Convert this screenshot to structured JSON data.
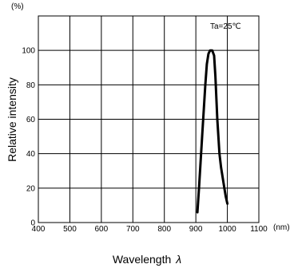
{
  "chart_data": {
    "type": "line",
    "title": "",
    "xlabel": "Wavelength",
    "xlabel_symbol": "λ",
    "ylabel": "Relative intensity",
    "y_unit": "(%)",
    "x_unit": "(nm)",
    "annotation": "Ta=25℃",
    "legend": "none",
    "grid": true,
    "xlim": [
      400,
      1100
    ],
    "ylim": [
      0,
      120
    ],
    "x_ticks": [
      400,
      500,
      600,
      700,
      800,
      900,
      1000,
      1100
    ],
    "y_ticks": [
      0,
      20,
      40,
      60,
      80,
      100
    ],
    "x_tick_labels": [
      "400",
      "500",
      "600",
      "700",
      "800",
      "900",
      "1000",
      "1100"
    ],
    "y_tick_labels": [
      "0",
      "20",
      "40",
      "60",
      "80",
      "100"
    ],
    "series": [
      {
        "color": "#000000",
        "points": [
          [
            905,
            6
          ],
          [
            910,
            20
          ],
          [
            920,
            50
          ],
          [
            930,
            80
          ],
          [
            935,
            92
          ],
          [
            940,
            98
          ],
          [
            945,
            100
          ],
          [
            952,
            100
          ],
          [
            958,
            97
          ],
          [
            962,
            85
          ],
          [
            968,
            60
          ],
          [
            975,
            40
          ],
          [
            980,
            32
          ],
          [
            988,
            23
          ],
          [
            995,
            15
          ],
          [
            1000,
            11
          ]
        ]
      }
    ]
  }
}
